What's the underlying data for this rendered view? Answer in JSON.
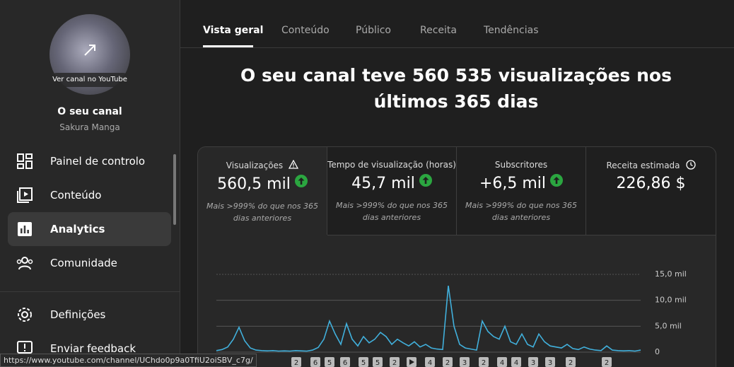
{
  "sidebar": {
    "channel_link": "Ver canal no YouTube",
    "channel_title": "O seu canal",
    "channel_name": "Sakura Manga",
    "nav": [
      "Painel de controlo",
      "Conteúdo",
      "Analytics",
      "Comunidade"
    ],
    "bottom_nav": [
      "Definições",
      "Enviar feedback"
    ]
  },
  "status_url": "https://www.youtube.com/channel/UChdo0p9a0TfiU2oiSBV_c7g/",
  "tabs": [
    "Vista geral",
    "Conteúdo",
    "Público",
    "Receita",
    "Tendências"
  ],
  "headline": "O seu canal teve 560 535 visualizações nos últimos 365 dias",
  "metrics": [
    {
      "label": "Visualizações",
      "value": "560,5 mil",
      "note": "Mais >999% do que nos 365 dias anteriores"
    },
    {
      "label": "Tempo de visualização (horas)",
      "value": "45,7 mil",
      "note": "Mais >999% do que nos 365 dias anteriores"
    },
    {
      "label": "Subscritores",
      "value": "+6,5 mil",
      "note": "Mais >999% do que nos 365 dias anteriores"
    },
    {
      "label": "Receita estimada",
      "value": "226,86 $"
    }
  ],
  "chart_data": {
    "type": "line",
    "color": "#41b0dc",
    "values": [
      300,
      500,
      1000,
      2500,
      4800,
      2200,
      800,
      400,
      300,
      250,
      300,
      200,
      250,
      200,
      300,
      250,
      200,
      400,
      900,
      2500,
      6000,
      3500,
      1500,
      5500,
      2500,
      1200,
      3000,
      1800,
      2500,
      3800,
      3000,
      1500,
      2500,
      1800,
      1200,
      2000,
      1000,
      1500,
      800,
      600,
      500,
      12800,
      5000,
      1500,
      800,
      600,
      400,
      6000,
      4000,
      3000,
      2500,
      5000,
      2000,
      1500,
      3500,
      1500,
      1000,
      3500,
      2000,
      1200,
      1000,
      800,
      1500,
      700,
      500,
      1000,
      600,
      400,
      300,
      1200,
      400,
      300,
      250,
      300,
      200,
      400
    ],
    "ylim": [
      0,
      15000
    ],
    "yticks": [
      0,
      {
        "value": 5000,
        "label": "5,0 mil"
      },
      {
        "value": 10000,
        "label": "10,0 mil"
      },
      {
        "value": 15000,
        "label": "15,0 mil"
      }
    ],
    "video_markers": [
      2,
      6,
      5,
      6,
      5,
      5,
      2,
      null,
      4,
      2,
      3,
      2,
      4,
      4,
      3,
      3,
      2,
      2
    ]
  }
}
